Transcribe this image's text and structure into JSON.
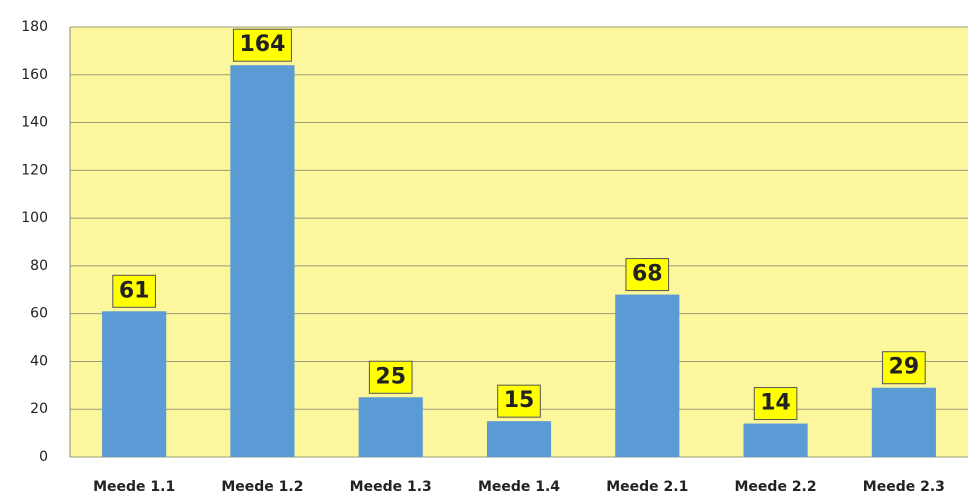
{
  "chart_data": {
    "type": "bar",
    "categories": [
      "Meede 1.1",
      "Meede 1.2",
      "Meede 1.3",
      "Meede 1.4",
      "Meede 2.1",
      "Meede 2.2",
      "Meede 2.3"
    ],
    "values": [
      61,
      164,
      25,
      15,
      68,
      14,
      29
    ],
    "color": "#5b9bd5",
    "ylim": [
      0,
      180
    ],
    "yticks": [
      0,
      20,
      40,
      60,
      80,
      100,
      120,
      140,
      160,
      180
    ],
    "grid": true
  }
}
